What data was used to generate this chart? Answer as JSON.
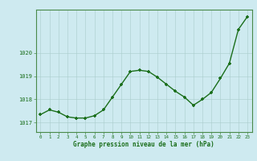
{
  "x": [
    0,
    1,
    2,
    3,
    4,
    5,
    6,
    7,
    8,
    9,
    10,
    11,
    12,
    13,
    14,
    15,
    16,
    17,
    18,
    19,
    20,
    21,
    22,
    23
  ],
  "y": [
    1017.35,
    1017.55,
    1017.45,
    1017.25,
    1017.2,
    1017.2,
    1017.3,
    1017.55,
    1018.1,
    1018.65,
    1019.2,
    1019.25,
    1019.2,
    1018.95,
    1018.65,
    1018.35,
    1018.1,
    1017.75,
    1018.0,
    1018.3,
    1018.9,
    1019.55,
    1021.0,
    1021.55
  ],
  "line_color": "#1a6e1a",
  "marker_color": "#1a6e1a",
  "bg_color": "#ceeaf0",
  "grid_color": "#aacccc",
  "label_color": "#1a6e1a",
  "xlabel": "Graphe pression niveau de la mer (hPa)",
  "ylim": [
    1016.6,
    1021.85
  ],
  "yticks": [
    1017,
    1018,
    1019,
    1020
  ],
  "xticks": [
    0,
    1,
    2,
    3,
    4,
    5,
    6,
    7,
    8,
    9,
    10,
    11,
    12,
    13,
    14,
    15,
    16,
    17,
    18,
    19,
    20,
    21,
    22,
    23
  ]
}
